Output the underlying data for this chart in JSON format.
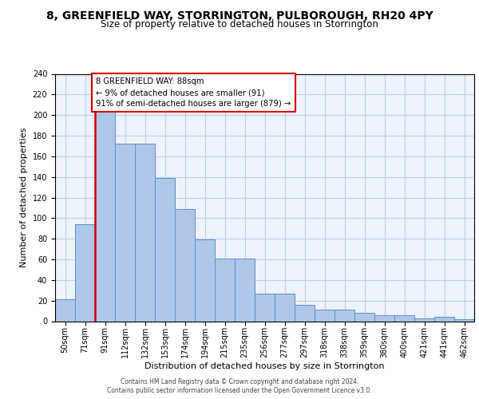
{
  "title1": "8, GREENFIELD WAY, STORRINGTON, PULBOROUGH, RH20 4PY",
  "title2": "Size of property relative to detached houses in Storrington",
  "xlabel": "Distribution of detached houses by size in Storrington",
  "ylabel": "Number of detached properties",
  "categories": [
    "50sqm",
    "71sqm",
    "91sqm",
    "112sqm",
    "132sqm",
    "153sqm",
    "174sqm",
    "194sqm",
    "215sqm",
    "235sqm",
    "256sqm",
    "277sqm",
    "297sqm",
    "318sqm",
    "338sqm",
    "359sqm",
    "380sqm",
    "400sqm",
    "421sqm",
    "441sqm",
    "462sqm"
  ],
  "values": [
    21,
    94,
    204,
    172,
    172,
    139,
    109,
    79,
    61,
    61,
    27,
    27,
    16,
    11,
    11,
    8,
    6,
    6,
    3,
    4,
    2
  ],
  "bar_color": "#aec6e8",
  "bar_edge_color": "#5a8fc4",
  "ref_line_color": "#cc0000",
  "ref_line_x": 1.5,
  "annotation_text": "8 GREENFIELD WAY: 88sqm\n← 9% of detached houses are smaller (91)\n91% of semi-detached houses are larger (879) →",
  "footer1": "Contains HM Land Registry data © Crown copyright and database right 2024.",
  "footer2": "Contains public sector information licensed under the Open Government Licence v3.0.",
  "bg_color": "#edf2fb",
  "grid_color": "#c0cfe8",
  "ylim_max": 240,
  "yticks": [
    0,
    20,
    40,
    60,
    80,
    100,
    120,
    140,
    160,
    180,
    200,
    220,
    240
  ],
  "title1_fontsize": 10,
  "title2_fontsize": 8.5,
  "ylabel_fontsize": 8,
  "xlabel_fontsize": 8,
  "tick_fontsize": 7,
  "footer_fontsize": 5.5
}
